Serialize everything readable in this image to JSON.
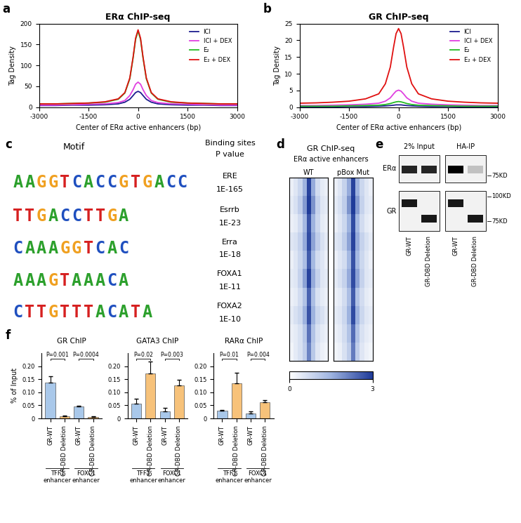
{
  "chart_data": [
    {
      "type": "line",
      "panel": "a",
      "title": "ERα ChIP-seq",
      "xlabel": "Center of ERα active enhancers (bp)",
      "ylabel": "Tag Density",
      "x": [
        -3000,
        -2500,
        -2000,
        -1500,
        -1000,
        -600,
        -400,
        -250,
        -150,
        -75,
        0,
        75,
        150,
        250,
        400,
        600,
        1000,
        1500,
        2000,
        2500,
        3000
      ],
      "series": [
        {
          "name": "ICI",
          "color": "#1c1c8f",
          "values": [
            4,
            4,
            5,
            5,
            6,
            8,
            12,
            19,
            28,
            35,
            38,
            35,
            28,
            19,
            12,
            8,
            6,
            5,
            5,
            4,
            4
          ]
        },
        {
          "name": "ICI + DEX",
          "color": "#e040e0",
          "values": [
            5,
            5,
            6,
            7,
            8,
            11,
            16,
            28,
            42,
            55,
            60,
            55,
            42,
            28,
            16,
            11,
            8,
            7,
            6,
            5,
            5
          ]
        },
        {
          "name": "E₂",
          "color": "#22bb22",
          "values": [
            8,
            8,
            9,
            10,
            12,
            19,
            34,
            68,
            118,
            162,
            182,
            162,
            118,
            68,
            34,
            19,
            12,
            10,
            9,
            8,
            8
          ]
        },
        {
          "name": "E₂ + DEX",
          "color": "#e01010",
          "values": [
            8,
            8,
            9,
            10,
            13,
            20,
            35,
            70,
            120,
            165,
            185,
            165,
            120,
            70,
            35,
            20,
            13,
            10,
            9,
            8,
            8
          ]
        }
      ],
      "xlim": [
        -3000,
        3000
      ],
      "xticks": [
        -3000,
        -1500,
        0,
        1500,
        3000
      ],
      "ylim": [
        0,
        200
      ],
      "yticks": [
        0,
        50,
        100,
        150,
        200
      ],
      "legend": "upper right"
    },
    {
      "type": "line",
      "panel": "b",
      "title": "GR ChIP-seq",
      "xlabel": "Center of ERα active enhancers (bp)",
      "ylabel": "Tag Density",
      "x": [
        -3000,
        -2500,
        -2000,
        -1500,
        -1000,
        -600,
        -400,
        -250,
        -150,
        -75,
        0,
        75,
        150,
        250,
        400,
        600,
        1000,
        1500,
        2000,
        2500,
        3000
      ],
      "series": [
        {
          "name": "ICI",
          "color": "#1c1c8f",
          "values": [
            0.1,
            0.1,
            0.1,
            0.2,
            0.2,
            0.3,
            0.4,
            0.5,
            0.6,
            0.7,
            0.7,
            0.7,
            0.6,
            0.5,
            0.4,
            0.3,
            0.2,
            0.2,
            0.1,
            0.1,
            0.1
          ]
        },
        {
          "name": "ICI + DEX",
          "color": "#e040e0",
          "values": [
            0.5,
            0.5,
            0.6,
            0.7,
            0.9,
            1.2,
            1.8,
            2.8,
            4,
            4.8,
            5.1,
            4.8,
            4,
            2.8,
            1.8,
            1.2,
            0.9,
            0.7,
            0.6,
            0.5,
            0.5
          ]
        },
        {
          "name": "E₂",
          "color": "#22bb22",
          "values": [
            0.3,
            0.3,
            0.3,
            0.4,
            0.5,
            0.6,
            0.8,
            1.1,
            1.4,
            1.6,
            1.7,
            1.6,
            1.4,
            1.1,
            0.8,
            0.6,
            0.5,
            0.4,
            0.3,
            0.3,
            0.3
          ]
        },
        {
          "name": "E₂ + DEX",
          "color": "#e01010",
          "values": [
            1.2,
            1.3,
            1.5,
            1.8,
            2.5,
            4,
            7,
            12,
            18,
            22,
            23.5,
            22,
            18,
            12,
            7,
            4,
            2.5,
            1.8,
            1.5,
            1.3,
            1.2
          ]
        }
      ],
      "xlim": [
        -3000,
        3000
      ],
      "xticks": [
        -3000,
        -1500,
        0,
        1500,
        3000
      ],
      "ylim": [
        0,
        25
      ],
      "yticks": [
        0,
        5,
        10,
        15,
        20,
        25
      ],
      "legend": "upper right"
    },
    {
      "type": "heatmap",
      "panel": "d",
      "title": "GR ChIP-seq",
      "subtitle": "ERα active enhancers",
      "panels": [
        "WT",
        "pBox Mut"
      ],
      "cells": [
        [
          [
            0.3,
            0.5,
            0.8,
            1.5,
            2.9,
            1.6,
            0.7,
            0.4,
            0.3
          ],
          [
            0.4,
            0.6,
            1.0,
            1.8,
            3.0,
            1.9,
            0.9,
            0.5,
            0.4
          ],
          [
            0.3,
            0.4,
            0.7,
            1.4,
            2.7,
            1.5,
            0.8,
            0.4,
            0.3
          ],
          [
            0.5,
            0.6,
            0.9,
            1.6,
            2.8,
            1.7,
            1.0,
            0.6,
            0.4
          ],
          [
            0.3,
            0.5,
            0.8,
            1.3,
            2.6,
            1.4,
            0.7,
            0.5,
            0.3
          ],
          [
            0.4,
            0.5,
            0.9,
            1.7,
            2.9,
            1.6,
            0.9,
            0.5,
            0.4
          ],
          [
            0.3,
            0.4,
            0.7,
            1.2,
            2.5,
            1.3,
            0.6,
            0.4,
            0.3
          ],
          [
            0.4,
            0.6,
            0.8,
            1.5,
            2.7,
            1.5,
            0.8,
            0.6,
            0.4
          ],
          [
            0.3,
            0.4,
            0.6,
            1.1,
            2.3,
            1.2,
            0.6,
            0.4,
            0.3
          ],
          [
            0.2,
            0.4,
            0.6,
            1.0,
            2.1,
            1.1,
            0.5,
            0.3,
            0.2
          ]
        ],
        [
          [
            0.3,
            0.5,
            0.9,
            1.6,
            2.9,
            1.5,
            0.8,
            0.5,
            0.3
          ],
          [
            0.4,
            0.6,
            1.0,
            1.9,
            3.0,
            1.8,
            0.9,
            0.5,
            0.4
          ],
          [
            0.3,
            0.5,
            0.8,
            1.5,
            2.8,
            1.4,
            0.7,
            0.4,
            0.3
          ],
          [
            0.5,
            0.6,
            1.0,
            1.7,
            2.9,
            1.6,
            0.9,
            0.6,
            0.4
          ],
          [
            0.3,
            0.5,
            0.7,
            1.4,
            2.7,
            1.4,
            0.8,
            0.5,
            0.3
          ],
          [
            0.4,
            0.6,
            0.9,
            1.6,
            2.8,
            1.7,
            0.9,
            0.5,
            0.4
          ],
          [
            0.3,
            0.4,
            0.7,
            1.3,
            2.6,
            1.2,
            0.7,
            0.4,
            0.3
          ],
          [
            0.4,
            0.5,
            0.8,
            1.5,
            2.8,
            1.5,
            0.8,
            0.5,
            0.4
          ],
          [
            0.3,
            0.4,
            0.7,
            1.2,
            2.4,
            1.2,
            0.6,
            0.4,
            0.3
          ],
          [
            0.2,
            0.3,
            0.6,
            1.0,
            2.2,
            1.0,
            0.5,
            0.3,
            0.2
          ]
        ]
      ],
      "colorbar": {
        "range": [
          0,
          3
        ],
        "ticks": [
          0,
          3
        ]
      },
      "tick_labels": false
    },
    {
      "type": "bar",
      "panel": "f",
      "title": "GR ChIP",
      "ylabel": "% of Input",
      "categories": [
        "GR-WT",
        "GR-DBD Deletion",
        "GR-WT",
        "GR-DBD Deletion"
      ],
      "groups": [
        "TFF1\nenhancer",
        "FOXC1\nenhancer"
      ],
      "colors": [
        "#a9c8ea",
        "#f7c27a",
        "#a9c8ea",
        "#f7c27a"
      ],
      "values": [
        0.138,
        0.008,
        0.045,
        0.005
      ],
      "errors": [
        0.022,
        0.002,
        0.004,
        0.002
      ],
      "p_values": [
        "P=0.001",
        "P=0.0004"
      ],
      "ylim": [
        0,
        0.25
      ],
      "yticks": [
        0,
        0.05,
        {
          "value": 0.1,
          "label": "0.10"
        },
        0.15,
        {
          "value": 0.2,
          "label": "0.20"
        }
      ]
    },
    {
      "type": "bar",
      "title": "GATA3 ChIP",
      "categories": [
        "GR-WT",
        "GR-DBD Deletion",
        "GR-WT",
        "GR-DBD Deletion"
      ],
      "groups": [
        "TFF1\nenhancer",
        "FOXC1\nenhancer"
      ],
      "colors": [
        "#a9c8ea",
        "#f7c27a",
        "#a9c8ea",
        "#f7c27a"
      ],
      "values": [
        0.057,
        0.173,
        0.028,
        0.127
      ],
      "errors": [
        0.018,
        0.045,
        0.012,
        0.02
      ],
      "p_values": [
        "P=0.02",
        "P=0.003"
      ],
      "ylim": [
        0,
        0.25
      ],
      "yticks": [
        0,
        0.05,
        {
          "value": 0.1,
          "label": "0.10"
        },
        0.15,
        {
          "value": 0.2,
          "label": "0.20"
        }
      ]
    },
    {
      "type": "bar",
      "title": "RARα ChIP",
      "categories": [
        "GR-WT",
        "GR-DBD Deletion",
        "GR-WT",
        "GR-DBD Deletion"
      ],
      "groups": [
        "TFF1\nenhancer",
        "FOXC1\nenhancer"
      ],
      "colors": [
        "#a9c8ea",
        "#f7c27a",
        "#a9c8ea",
        "#f7c27a"
      ],
      "values": [
        0.029,
        0.135,
        0.019,
        0.061
      ],
      "errors": [
        0.004,
        0.04,
        0.007,
        0.01
      ],
      "p_values": [
        "P=0.01",
        "P=0.004"
      ],
      "ylim": [
        0,
        0.25
      ],
      "yticks": [
        0,
        0.05,
        {
          "value": 0.1,
          "label": "0.10"
        },
        0.15,
        {
          "value": 0.2,
          "label": "0.20"
        }
      ]
    }
  ],
  "motif_table": {
    "panel": "c",
    "header": {
      "motif": "Motif",
      "binding_sites": "Binding sites",
      "p_value": "P value"
    },
    "rows": [
      {
        "motif": "AAGGTCACCGTGACC",
        "name": "ERE",
        "p_value": "1E-165"
      },
      {
        "motif": "TTGACCTTGA",
        "name": "Esrrb",
        "p_value": "1E-23"
      },
      {
        "motif": "CAAAGGTCAC",
        "name": "Erra",
        "p_value": "1E-18"
      },
      {
        "motif": "AAAGTAAACA",
        "name": "FOXA1",
        "p_value": "1E-11"
      },
      {
        "motif": "CTTGTTTACATA",
        "name": "FOXA2",
        "p_value": "1E-10"
      }
    ]
  },
  "western_blot": {
    "panel": "e",
    "groups": [
      "2% Input",
      "HA-IP"
    ],
    "lanes": [
      "GR-WT",
      "GR-DBD Deletion"
    ],
    "rows": [
      "ERα",
      "GR"
    ],
    "markers": [
      "75KD",
      "100KD",
      "75KD"
    ]
  }
}
